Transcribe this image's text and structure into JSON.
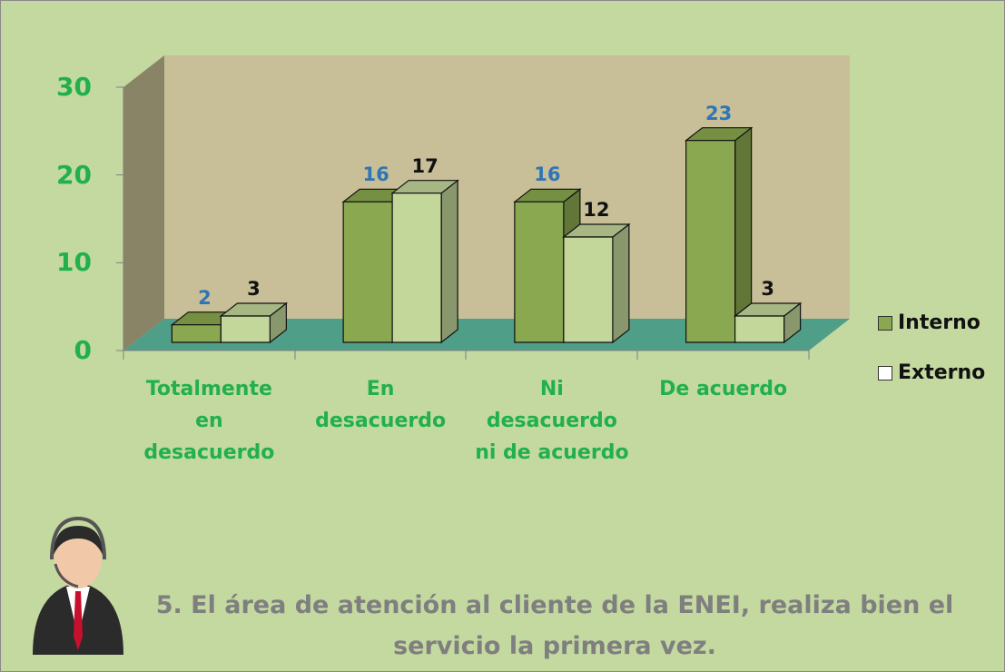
{
  "chart_data": {
    "type": "bar3d",
    "title": "5. El área de atención al cliente de la ENEI, realiza bien el servicio la primera vez.",
    "categories": [
      "Totalmente en desacuerdo",
      "En desacuerdo",
      "Ni desacuerdo ni de acuerdo",
      "De acuerdo"
    ],
    "series": [
      {
        "name": "Interno",
        "color": "#8aa84f",
        "label_color": "#2e75b6",
        "values": [
          2,
          16,
          16,
          23
        ]
      },
      {
        "name": "Externo",
        "color": "#c4d79b",
        "label_color": "#111111",
        "values": [
          3,
          17,
          12,
          3
        ]
      }
    ],
    "ylim": [
      0,
      30
    ],
    "yticks": [
      0,
      10,
      20,
      30
    ],
    "legend": "right"
  }
}
